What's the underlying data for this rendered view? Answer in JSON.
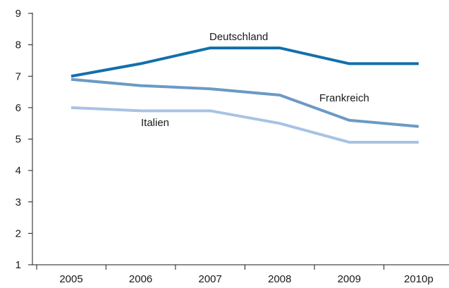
{
  "chart_data": {
    "type": "line",
    "categories": [
      "2005",
      "2006",
      "2007",
      "2008",
      "2009",
      "2010p"
    ],
    "ylim": [
      1,
      9
    ],
    "yticks": [
      1,
      2,
      3,
      4,
      5,
      6,
      7,
      8,
      9
    ],
    "grid": false,
    "legend": "none",
    "title": "",
    "xlabel": "",
    "ylabel": "",
    "series": [
      {
        "name": "Deutschland",
        "color": "#1170aa",
        "values": [
          7.0,
          7.4,
          7.9,
          7.9,
          7.4,
          7.4
        ]
      },
      {
        "name": "Frankreich",
        "color": "#6b9ac4",
        "values": [
          6.9,
          6.7,
          6.6,
          6.4,
          5.6,
          5.4
        ]
      },
      {
        "name": "Italien",
        "color": "#a7c3e4",
        "values": [
          6.0,
          5.9,
          5.9,
          5.5,
          4.9,
          4.9
        ]
      }
    ]
  }
}
